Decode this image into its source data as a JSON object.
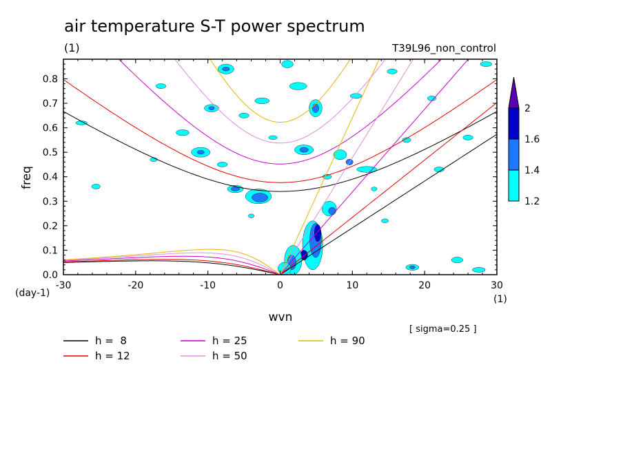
{
  "chart_data": {
    "type": "heatmap",
    "title": "air temperature S-T power spectrum",
    "subtitle_left": "(1)",
    "subtitle_right": "T39L96_non_control",
    "xlabel": "wvn",
    "ylabel": "freq",
    "x_unit": "(1)",
    "y_unit": "(day-1)",
    "note": "[ sigma=0.25 ]",
    "xlim": [
      -30,
      30
    ],
    "ylim": [
      0,
      0.88
    ],
    "x_ticks": [
      -30,
      -20,
      -10,
      0,
      10,
      20,
      30
    ],
    "y_ticks": [
      0,
      0.1,
      0.2,
      0.3,
      0.4,
      0.5,
      0.6,
      0.7,
      0.8
    ],
    "x_tick_labels": [
      "-30",
      "-20",
      "-10",
      "0",
      "10",
      "20",
      "30"
    ],
    "y_tick_labels": [
      "0.0",
      "0.1",
      "0.2",
      "0.3",
      "0.4",
      "0.5",
      "0.6",
      "0.7",
      "0.8"
    ],
    "colorbar": {
      "levels": [
        1.2,
        1.4,
        1.6,
        2
      ],
      "level_labels": [
        "1.2",
        "1.4",
        "1.6",
        "2"
      ],
      "colors": [
        "#00ffff",
        "#1e78ff",
        "#0000c8",
        "#5a00b4"
      ]
    },
    "contour_regions": [
      {
        "x": 4.5,
        "y": 0.12,
        "rx": 1.4,
        "ry": 0.1,
        "level": 0
      },
      {
        "x": 4.9,
        "y": 0.14,
        "rx": 0.8,
        "ry": 0.07,
        "level": 1
      },
      {
        "x": 5.2,
        "y": 0.17,
        "rx": 0.45,
        "ry": 0.035,
        "level": 2
      },
      {
        "x": 3.3,
        "y": 0.08,
        "rx": 0.5,
        "ry": 0.02,
        "level": 2
      },
      {
        "x": 1.8,
        "y": 0.06,
        "rx": 1.2,
        "ry": 0.06,
        "level": 0
      },
      {
        "x": 1.6,
        "y": 0.05,
        "rx": 0.6,
        "ry": 0.03,
        "level": 1
      },
      {
        "x": 0.6,
        "y": 0.025,
        "rx": 0.9,
        "ry": 0.025,
        "level": 0
      },
      {
        "x": 6.8,
        "y": 0.27,
        "rx": 1.0,
        "ry": 0.03,
        "level": 0
      },
      {
        "x": 7.2,
        "y": 0.26,
        "rx": 0.5,
        "ry": 0.015,
        "level": 1
      },
      {
        "x": 4.9,
        "y": 0.68,
        "rx": 0.9,
        "ry": 0.035,
        "level": 0
      },
      {
        "x": 4.9,
        "y": 0.68,
        "rx": 0.45,
        "ry": 0.018,
        "level": 1
      },
      {
        "x": 3.3,
        "y": 0.51,
        "rx": 1.3,
        "ry": 0.02,
        "level": 0
      },
      {
        "x": 3.3,
        "y": 0.51,
        "rx": 0.6,
        "ry": 0.01,
        "level": 1
      },
      {
        "x": -3.0,
        "y": 0.32,
        "rx": 1.8,
        "ry": 0.03,
        "level": 0
      },
      {
        "x": -2.8,
        "y": 0.315,
        "rx": 1.1,
        "ry": 0.018,
        "level": 1
      },
      {
        "x": -6.2,
        "y": 0.35,
        "rx": 1.1,
        "ry": 0.015,
        "level": 0
      },
      {
        "x": -6.2,
        "y": 0.35,
        "rx": 0.6,
        "ry": 0.008,
        "level": 1
      },
      {
        "x": -11.0,
        "y": 0.5,
        "rx": 1.3,
        "ry": 0.02,
        "level": 0
      },
      {
        "x": -11.0,
        "y": 0.5,
        "rx": 0.5,
        "ry": 0.008,
        "level": 1
      },
      {
        "x": -9.5,
        "y": 0.68,
        "rx": 1.0,
        "ry": 0.015,
        "level": 0
      },
      {
        "x": -9.5,
        "y": 0.68,
        "rx": 0.4,
        "ry": 0.007,
        "level": 1
      },
      {
        "x": -7.5,
        "y": 0.84,
        "rx": 1.1,
        "ry": 0.02,
        "level": 0
      },
      {
        "x": -7.5,
        "y": 0.84,
        "rx": 0.5,
        "ry": 0.008,
        "level": 1
      },
      {
        "x": 1.0,
        "y": 0.86,
        "rx": 0.8,
        "ry": 0.015,
        "level": 0
      },
      {
        "x": 9.6,
        "y": 0.46,
        "rx": 0.5,
        "ry": 0.012,
        "level": 1
      },
      {
        "x": 8.3,
        "y": 0.49,
        "rx": 0.9,
        "ry": 0.02,
        "level": 0
      },
      {
        "x": 12.0,
        "y": 0.43,
        "rx": 1.4,
        "ry": 0.012,
        "level": 0
      },
      {
        "x": 18.3,
        "y": 0.03,
        "rx": 0.9,
        "ry": 0.012,
        "level": 0
      },
      {
        "x": 18.3,
        "y": 0.03,
        "rx": 0.4,
        "ry": 0.006,
        "level": 1
      },
      {
        "x": 24.5,
        "y": 0.06,
        "rx": 0.8,
        "ry": 0.012,
        "level": 0
      },
      {
        "x": 27.5,
        "y": 0.02,
        "rx": 0.9,
        "ry": 0.01,
        "level": 0
      },
      {
        "x": -25.5,
        "y": 0.36,
        "rx": 0.6,
        "ry": 0.01,
        "level": 0
      },
      {
        "x": -27.5,
        "y": 0.62,
        "rx": 0.8,
        "ry": 0.008,
        "level": 0
      },
      {
        "x": -16.5,
        "y": 0.77,
        "rx": 0.7,
        "ry": 0.01,
        "level": 0
      },
      {
        "x": -5.0,
        "y": 0.65,
        "rx": 0.7,
        "ry": 0.01,
        "level": 0
      },
      {
        "x": -13.5,
        "y": 0.58,
        "rx": 0.9,
        "ry": 0.012,
        "level": 0
      },
      {
        "x": -2.5,
        "y": 0.71,
        "rx": 1.0,
        "ry": 0.012,
        "level": 0
      },
      {
        "x": 2.5,
        "y": 0.77,
        "rx": 1.2,
        "ry": 0.015,
        "level": 0
      },
      {
        "x": 10.5,
        "y": 0.73,
        "rx": 0.8,
        "ry": 0.01,
        "level": 0
      },
      {
        "x": 17.5,
        "y": 0.55,
        "rx": 0.6,
        "ry": 0.01,
        "level": 0
      },
      {
        "x": 22.0,
        "y": 0.43,
        "rx": 0.7,
        "ry": 0.01,
        "level": 0
      },
      {
        "x": 26.0,
        "y": 0.56,
        "rx": 0.7,
        "ry": 0.01,
        "level": 0
      },
      {
        "x": 28.5,
        "y": 0.86,
        "rx": 0.8,
        "ry": 0.01,
        "level": 0
      },
      {
        "x": 14.5,
        "y": 0.22,
        "rx": 0.5,
        "ry": 0.008,
        "level": 0
      },
      {
        "x": -8.0,
        "y": 0.45,
        "rx": 0.7,
        "ry": 0.01,
        "level": 0
      },
      {
        "x": -1.0,
        "y": 0.56,
        "rx": 0.6,
        "ry": 0.008,
        "level": 0
      },
      {
        "x": -17.5,
        "y": 0.47,
        "rx": 0.5,
        "ry": 0.008,
        "level": 0
      },
      {
        "x": 21.0,
        "y": 0.72,
        "rx": 0.6,
        "ry": 0.01,
        "level": 0
      },
      {
        "x": 15.5,
        "y": 0.83,
        "rx": 0.7,
        "ry": 0.01,
        "level": 0
      },
      {
        "x": 6.5,
        "y": 0.4,
        "rx": 0.6,
        "ry": 0.01,
        "level": 0
      },
      {
        "x": -4.0,
        "y": 0.24,
        "rx": 0.4,
        "ry": 0.008,
        "level": 0
      },
      {
        "x": 13.0,
        "y": 0.35,
        "rx": 0.4,
        "ry": 0.008,
        "level": 0
      }
    ],
    "series": [
      {
        "name": "h =  8",
        "h": 8,
        "color": "#000000"
      },
      {
        "name": "h = 12",
        "h": 12,
        "color": "#e00000"
      },
      {
        "name": "h = 25",
        "h": 25,
        "color": "#c800c8"
      },
      {
        "name": "h = 50",
        "h": 50,
        "color": "#e08ce0"
      },
      {
        "name": "h = 90",
        "h": 90,
        "color": "#e6b400"
      }
    ],
    "legend_position": "bottom"
  }
}
